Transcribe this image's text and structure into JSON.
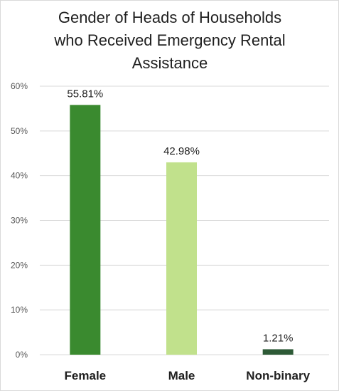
{
  "chart_data": {
    "type": "bar",
    "title_lines": [
      "Gender of Heads of Households",
      "who Received Emergency Rental",
      "Assistance"
    ],
    "categories": [
      "Female",
      "Male",
      "Non-binary"
    ],
    "values": [
      55.81,
      42.98,
      1.21
    ],
    "data_labels": [
      "55.81%",
      "42.98%",
      "1.21%"
    ],
    "bar_colors": [
      "#3a8a2f",
      "#c1e18c",
      "#2d5a36"
    ],
    "y_ticks": [
      "0%",
      "10%",
      "20%",
      "30%",
      "40%",
      "50%",
      "60%"
    ],
    "ylim": [
      0,
      60
    ],
    "grid": true,
    "legend": "none"
  }
}
